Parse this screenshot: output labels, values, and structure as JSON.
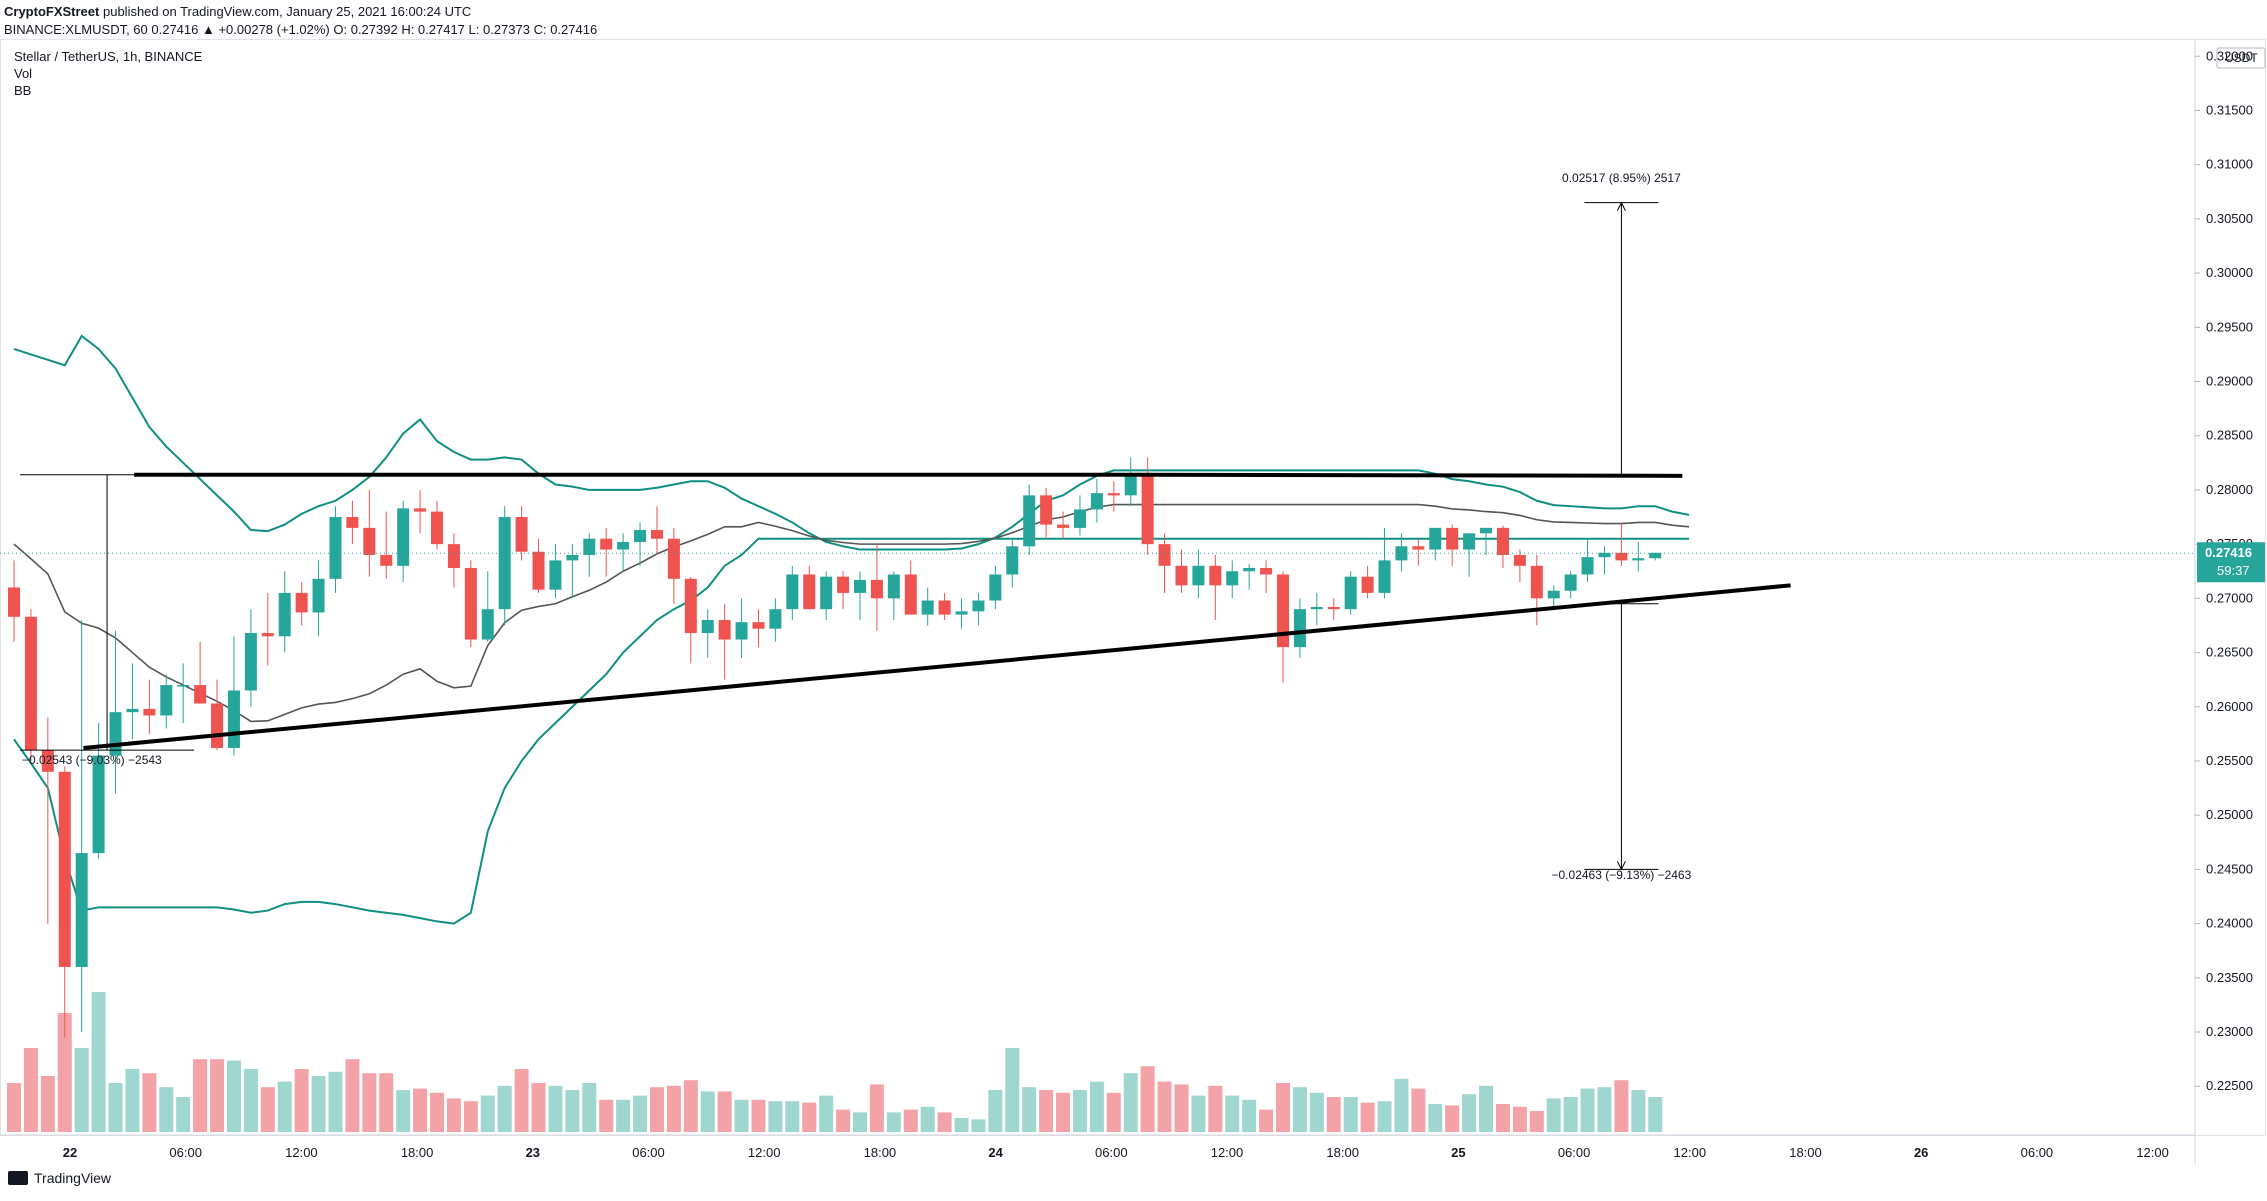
{
  "header": {
    "author": "CryptoFXStreet",
    "published": "published on TradingView.com, January 25, 2021 16:00:24 UTC",
    "symbol_line": "BINANCE:XLMUSDT, 60  0.27416  ▲  +0.00278 (+1.02%)  O: 0.27392  H: 0.27417  L: 0.27373  C: 0.27416"
  },
  "legend": {
    "title": "Stellar / TetherUS, 1h, BINANCE",
    "vol": "Vol",
    "bb": "BB"
  },
  "footer": {
    "brand": "TradingView"
  },
  "chart_data": {
    "type": "candlestick",
    "colors": {
      "up": "#26a69a",
      "down": "#ef5350",
      "bb": "#0f8f80",
      "ma": "#555555",
      "vol_up": "#9fd6cf",
      "vol_down": "#f3a3a7",
      "price_label": "#26a69a"
    },
    "y_axis": {
      "unit": "USDT",
      "ticks": [
        "0.32000",
        "0.31500",
        "0.31000",
        "0.30500",
        "0.30000",
        "0.29500",
        "0.29000",
        "0.28500",
        "0.28000",
        "0.27500",
        "0.27000",
        "0.26500",
        "0.26000",
        "0.25500",
        "0.25000",
        "0.24500",
        "0.24000",
        "0.23500",
        "0.23000",
        "0.22500"
      ],
      "ylim": [
        0.2205,
        0.3215
      ]
    },
    "x_axis": {
      "ticks": [
        "22",
        "06:00",
        "12:00",
        "18:00",
        "23",
        "06:00",
        "12:00",
        "18:00",
        "24",
        "06:00",
        "12:00",
        "18:00",
        "25",
        "06:00",
        "12:00",
        "18:00",
        "26",
        "06:00",
        "12:00"
      ],
      "bold": [
        "22",
        "23",
        "24",
        "25",
        "26"
      ]
    },
    "current_price": {
      "value": 0.27416,
      "label": "0.27416",
      "countdown": "59:37"
    },
    "candles": [
      [
        0.271,
        0.2735,
        0.266,
        0.2683
      ],
      [
        0.2683,
        0.269,
        0.255,
        0.256
      ],
      [
        0.256,
        0.259,
        0.24,
        0.254
      ],
      [
        0.254,
        0.2545,
        0.2295,
        0.236
      ],
      [
        0.236,
        0.268,
        0.23,
        0.2465
      ],
      [
        0.2465,
        0.2585,
        0.246,
        0.2555
      ],
      [
        0.2555,
        0.267,
        0.252,
        0.2595
      ],
      [
        0.2595,
        0.264,
        0.257,
        0.2598
      ],
      [
        0.2598,
        0.2625,
        0.2575,
        0.2592
      ],
      [
        0.2592,
        0.263,
        0.258,
        0.262
      ],
      [
        0.262,
        0.264,
        0.2585,
        0.262
      ],
      [
        0.262,
        0.266,
        0.261,
        0.2603
      ],
      [
        0.2603,
        0.2625,
        0.256,
        0.2562
      ],
      [
        0.2562,
        0.2665,
        0.2555,
        0.2615
      ],
      [
        0.2615,
        0.269,
        0.26,
        0.2668
      ],
      [
        0.2668,
        0.2705,
        0.2638,
        0.2665
      ],
      [
        0.2665,
        0.2725,
        0.265,
        0.2705
      ],
      [
        0.2705,
        0.2715,
        0.2675,
        0.2687
      ],
      [
        0.2687,
        0.2735,
        0.2665,
        0.2718
      ],
      [
        0.2718,
        0.2785,
        0.2705,
        0.2775
      ],
      [
        0.2775,
        0.279,
        0.275,
        0.2765
      ],
      [
        0.2765,
        0.28,
        0.272,
        0.274
      ],
      [
        0.274,
        0.278,
        0.2718,
        0.273
      ],
      [
        0.273,
        0.279,
        0.2715,
        0.2783
      ],
      [
        0.2783,
        0.28,
        0.276,
        0.278
      ],
      [
        0.278,
        0.279,
        0.2745,
        0.275
      ],
      [
        0.275,
        0.276,
        0.271,
        0.2728
      ],
      [
        0.2728,
        0.2735,
        0.2655,
        0.2662
      ],
      [
        0.2662,
        0.2725,
        0.266,
        0.269
      ],
      [
        0.269,
        0.2785,
        0.2675,
        0.2775
      ],
      [
        0.2775,
        0.2785,
        0.2735,
        0.2743
      ],
      [
        0.2743,
        0.2755,
        0.2705,
        0.2708
      ],
      [
        0.2708,
        0.275,
        0.27,
        0.2735
      ],
      [
        0.2735,
        0.275,
        0.27,
        0.274
      ],
      [
        0.274,
        0.276,
        0.272,
        0.2755
      ],
      [
        0.2755,
        0.2765,
        0.272,
        0.2745
      ],
      [
        0.2745,
        0.276,
        0.2725,
        0.2752
      ],
      [
        0.2752,
        0.277,
        0.273,
        0.2763
      ],
      [
        0.2763,
        0.2785,
        0.274,
        0.2755
      ],
      [
        0.2755,
        0.2765,
        0.2695,
        0.2718
      ],
      [
        0.2718,
        0.272,
        0.264,
        0.2668
      ],
      [
        0.2668,
        0.269,
        0.2645,
        0.268
      ],
      [
        0.268,
        0.2695,
        0.2625,
        0.2662
      ],
      [
        0.2662,
        0.27,
        0.2645,
        0.2678
      ],
      [
        0.2678,
        0.269,
        0.2655,
        0.2672
      ],
      [
        0.2672,
        0.27,
        0.266,
        0.269
      ],
      [
        0.269,
        0.273,
        0.268,
        0.2722
      ],
      [
        0.2722,
        0.273,
        0.27,
        0.269
      ],
      [
        0.269,
        0.2725,
        0.268,
        0.272
      ],
      [
        0.272,
        0.2725,
        0.269,
        0.2705
      ],
      [
        0.2705,
        0.2725,
        0.268,
        0.2717
      ],
      [
        0.2717,
        0.275,
        0.267,
        0.27
      ],
      [
        0.27,
        0.2725,
        0.268,
        0.2722
      ],
      [
        0.2722,
        0.2735,
        0.2685,
        0.2685
      ],
      [
        0.2685,
        0.271,
        0.2675,
        0.2698
      ],
      [
        0.2698,
        0.2705,
        0.268,
        0.2685
      ],
      [
        0.2685,
        0.27,
        0.2672,
        0.2688
      ],
      [
        0.2688,
        0.2705,
        0.2675,
        0.2698
      ],
      [
        0.2698,
        0.273,
        0.269,
        0.2722
      ],
      [
        0.2722,
        0.2755,
        0.271,
        0.2748
      ],
      [
        0.2748,
        0.2805,
        0.274,
        0.2795
      ],
      [
        0.2795,
        0.2802,
        0.2755,
        0.2768
      ],
      [
        0.2768,
        0.278,
        0.2755,
        0.2765
      ],
      [
        0.2765,
        0.2795,
        0.2758,
        0.2782
      ],
      [
        0.2782,
        0.281,
        0.277,
        0.2797
      ],
      [
        0.2797,
        0.2808,
        0.278,
        0.2795
      ],
      [
        0.2795,
        0.283,
        0.2785,
        0.2815
      ],
      [
        0.2815,
        0.283,
        0.274,
        0.275
      ],
      [
        0.275,
        0.276,
        0.2705,
        0.273
      ],
      [
        0.273,
        0.2745,
        0.2705,
        0.2712
      ],
      [
        0.2712,
        0.2745,
        0.27,
        0.273
      ],
      [
        0.273,
        0.274,
        0.268,
        0.2712
      ],
      [
        0.2712,
        0.2735,
        0.27,
        0.2725
      ],
      [
        0.2725,
        0.2732,
        0.2708,
        0.2728
      ],
      [
        0.2728,
        0.2735,
        0.2705,
        0.2722
      ],
      [
        0.2722,
        0.2725,
        0.2622,
        0.2655
      ],
      [
        0.2655,
        0.27,
        0.2645,
        0.269
      ],
      [
        0.269,
        0.2705,
        0.2675,
        0.2692
      ],
      [
        0.2692,
        0.27,
        0.268,
        0.269
      ],
      [
        0.269,
        0.2725,
        0.2685,
        0.272
      ],
      [
        0.272,
        0.273,
        0.27,
        0.2705
      ],
      [
        0.2705,
        0.2765,
        0.27,
        0.2735
      ],
      [
        0.2735,
        0.276,
        0.2725,
        0.2748
      ],
      [
        0.2748,
        0.2755,
        0.273,
        0.2745
      ],
      [
        0.2745,
        0.2765,
        0.2735,
        0.2765
      ],
      [
        0.2765,
        0.2768,
        0.273,
        0.2745
      ],
      [
        0.2745,
        0.276,
        0.272,
        0.276
      ],
      [
        0.276,
        0.2765,
        0.274,
        0.2765
      ],
      [
        0.2765,
        0.2767,
        0.2728,
        0.274
      ],
      [
        0.274,
        0.2745,
        0.2715,
        0.273
      ],
      [
        0.273,
        0.274,
        0.2675,
        0.27
      ],
      [
        0.27,
        0.2712,
        0.269,
        0.2707
      ],
      [
        0.2707,
        0.2725,
        0.27,
        0.2722
      ],
      [
        0.2722,
        0.2755,
        0.2715,
        0.2738
      ],
      [
        0.2738,
        0.2748,
        0.2722,
        0.2742
      ],
      [
        0.2742,
        0.277,
        0.273,
        0.2735
      ],
      [
        0.2735,
        0.2752,
        0.2725,
        0.2737
      ],
      [
        0.2737,
        0.2742,
        0.2735,
        0.2742
      ]
    ],
    "volume": [
      0.35,
      0.6,
      0.4,
      0.85,
      0.6,
      1.0,
      0.35,
      0.45,
      0.42,
      0.32,
      0.25,
      0.52,
      0.52,
      0.51,
      0.45,
      0.32,
      0.36,
      0.45,
      0.4,
      0.43,
      0.52,
      0.42,
      0.42,
      0.3,
      0.31,
      0.28,
      0.24,
      0.22,
      0.26,
      0.33,
      0.45,
      0.35,
      0.33,
      0.3,
      0.35,
      0.23,
      0.23,
      0.26,
      0.32,
      0.33,
      0.37,
      0.29,
      0.29,
      0.23,
      0.23,
      0.22,
      0.22,
      0.21,
      0.26,
      0.16,
      0.14,
      0.34,
      0.14,
      0.16,
      0.18,
      0.14,
      0.1,
      0.09,
      0.3,
      0.6,
      0.32,
      0.3,
      0.28,
      0.3,
      0.36,
      0.28,
      0.42,
      0.47,
      0.36,
      0.34,
      0.26,
      0.33,
      0.26,
      0.23,
      0.16,
      0.35,
      0.32,
      0.28,
      0.25,
      0.25,
      0.21,
      0.22,
      0.38,
      0.31,
      0.2,
      0.19,
      0.27,
      0.33,
      0.2,
      0.18,
      0.15,
      0.24,
      0.25,
      0.31,
      0.32,
      0.37,
      0.3,
      0.25,
      0.2,
      0.03
    ],
    "bb_upper": [
      0.293,
      0.2925,
      0.292,
      0.2915,
      0.2942,
      0.293,
      0.2912,
      0.2885,
      0.2858,
      0.284,
      0.2825,
      0.281,
      0.2795,
      0.278,
      0.2763,
      0.2762,
      0.2768,
      0.2778,
      0.2785,
      0.279,
      0.28,
      0.2812,
      0.283,
      0.2852,
      0.2865,
      0.2845,
      0.2835,
      0.2828,
      0.2828,
      0.283,
      0.2828,
      0.2815,
      0.2805,
      0.2803,
      0.28,
      0.28,
      0.28,
      0.28,
      0.2802,
      0.2805,
      0.2808,
      0.2808,
      0.2802,
      0.2792,
      0.2785,
      0.2778,
      0.277,
      0.276,
      0.2752,
      0.2748,
      0.2745,
      0.2745,
      0.2745,
      0.2745,
      0.2745,
      0.2745,
      0.2746,
      0.275,
      0.2756,
      0.2766,
      0.2778,
      0.279,
      0.2795,
      0.2805,
      0.2813,
      0.2818,
      0.2818,
      0.2818,
      0.2818,
      0.2818,
      0.2818,
      0.2818,
      0.2818,
      0.2818,
      0.2818,
      0.2818,
      0.2818,
      0.2818,
      0.2818,
      0.2818,
      0.2818,
      0.2818,
      0.2818,
      0.2818,
      0.2815,
      0.281,
      0.2808,
      0.2805,
      0.2803,
      0.2798,
      0.279,
      0.2786,
      0.2785,
      0.2784,
      0.2783,
      0.2783,
      0.2785,
      0.2785,
      0.278,
      0.2777
    ],
    "bb_lower": [
      0.257,
      0.2548,
      0.2525,
      0.246,
      0.2412,
      0.2415,
      0.2415,
      0.2415,
      0.2415,
      0.2415,
      0.2415,
      0.2415,
      0.2415,
      0.2413,
      0.241,
      0.2412,
      0.2418,
      0.242,
      0.242,
      0.2418,
      0.2415,
      0.2412,
      0.241,
      0.2408,
      0.2405,
      0.2402,
      0.24,
      0.241,
      0.2485,
      0.2525,
      0.255,
      0.257,
      0.2585,
      0.26,
      0.2615,
      0.263,
      0.265,
      0.2665,
      0.268,
      0.269,
      0.2698,
      0.271,
      0.273,
      0.274,
      0.2755,
      0.2755,
      0.2755,
      0.2755,
      0.2755,
      0.2755,
      0.2755,
      0.2755,
      0.2755,
      0.2755,
      0.2755,
      0.2755,
      0.2755,
      0.2755,
      0.2755,
      0.2755,
      0.2755,
      0.2755,
      0.2755,
      0.2755,
      0.2755,
      0.2755,
      0.2755,
      0.2755,
      0.2755,
      0.2755,
      0.2755,
      0.2755,
      0.2755,
      0.2755,
      0.2755,
      0.2755,
      0.2755,
      0.2755,
      0.2755,
      0.2755,
      0.2755,
      0.2755,
      0.2755,
      0.2755,
      0.2755,
      0.2755,
      0.2755,
      0.2755,
      0.2755,
      0.2755,
      0.2755,
      0.2755,
      0.2755,
      0.2755,
      0.2755,
      0.2755,
      0.2755,
      0.2755,
      0.2755,
      0.2755
    ],
    "bb_basis": [
      0.275,
      0.2735,
      0.2722,
      0.2687,
      0.2677,
      0.2672,
      0.2663,
      0.265,
      0.2638,
      0.2628,
      0.2618,
      0.2612,
      0.2607,
      0.26,
      0.2592,
      0.259,
      0.2592,
      0.2598,
      0.2602,
      0.2604,
      0.2607,
      0.2612,
      0.262,
      0.263,
      0.2635,
      0.2623,
      0.2617,
      0.2618,
      0.2656,
      0.2677,
      0.2689,
      0.2693,
      0.2695,
      0.2702,
      0.2708,
      0.2715,
      0.2725,
      0.2732,
      0.2741,
      0.2745,
      0.2748,
      0.2754,
      0.2766,
      0.2771,
      0.278,
      0.2776,
      0.2772,
      0.2767,
      0.2763,
      0.2761,
      0.276,
      0.276,
      0.276,
      0.276,
      0.276,
      0.276,
      0.2761,
      0.2762,
      0.2766,
      0.2771,
      0.2777,
      0.2783,
      0.2785,
      0.279,
      0.2794,
      0.2797,
      0.2797,
      0.2797,
      0.2797,
      0.2797,
      0.2797,
      0.2797,
      0.2797,
      0.2797,
      0.2797,
      0.2797,
      0.2797,
      0.2797,
      0.2797,
      0.2797,
      0.2797,
      0.2797,
      0.2797,
      0.2797,
      0.2795,
      0.2793,
      0.2792,
      0.279,
      0.2789,
      0.2787,
      0.2783,
      0.2781,
      0.278,
      0.278,
      0.2779,
      0.2779,
      0.278,
      0.278,
      0.2778,
      0.2776
    ],
    "trendlines": {
      "resistance": [
        [
          7.1,
          0.2814
        ],
        [
          66.5,
          0.2814
        ],
        [
          98.6,
          0.2813
        ]
      ],
      "support": [
        [
          4.1,
          0.2562
        ],
        [
          66.2,
          0.2654
        ],
        [
          105.0,
          0.2712
        ]
      ],
      "measure_left": {
        "x": 5.5,
        "top": 0.2814,
        "bottom": 0.256
      },
      "measure_right_up": {
        "x": 95.0,
        "from": 0.2814,
        "to": 0.3065
      },
      "measure_right_down": {
        "x": 95.0,
        "from": 0.2695,
        "to": 0.245
      }
    },
    "annotations": [
      {
        "text": "0.02517 (8.95%) 2517",
        "at": [
          95.0,
          0.3084
        ]
      },
      {
        "text": "−0.02543 (−9.03%) −2543",
        "at": [
          4.6,
          0.2547
        ]
      },
      {
        "text": "−0.02463 (−9.13%) −2463",
        "at": [
          95.0,
          0.2441
        ]
      }
    ]
  }
}
